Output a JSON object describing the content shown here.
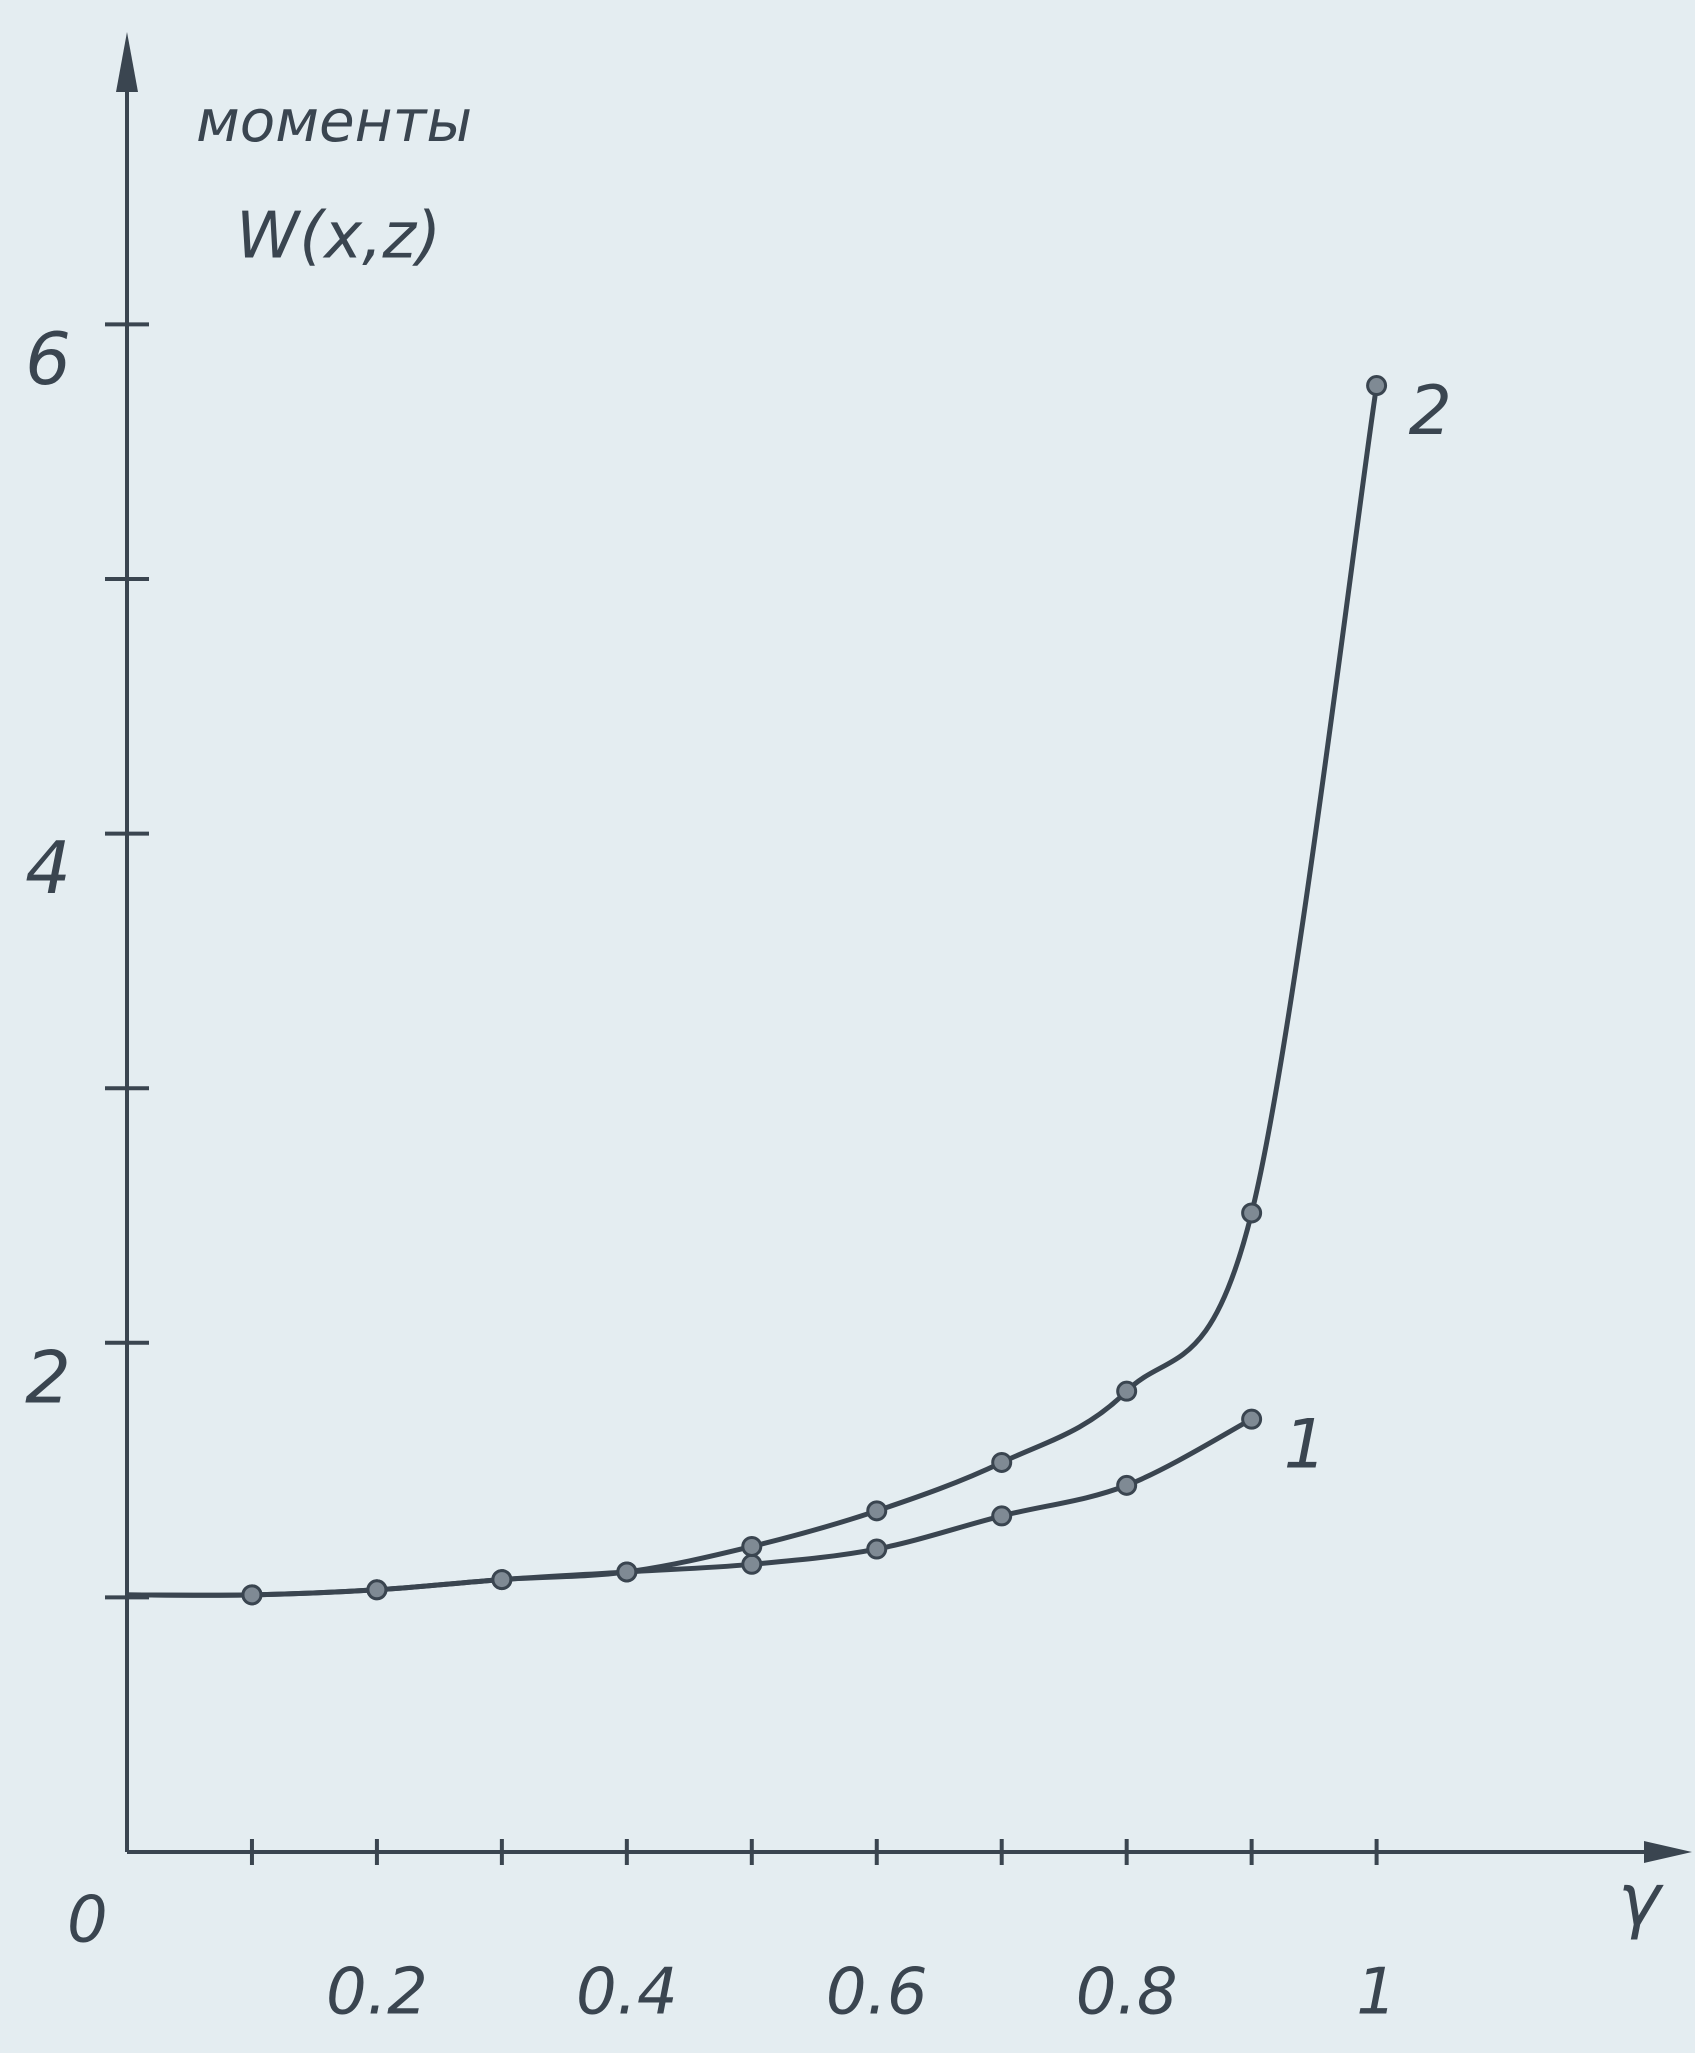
{
  "chart_data": {
    "type": "line",
    "y_label_lines": [
      "моменты",
      "W(x,z)"
    ],
    "x_label": "γ",
    "x": [
      0,
      0.1,
      0.2,
      0.3,
      0.4,
      0.5,
      0.6,
      0.7,
      0.8,
      0.9,
      1.0
    ],
    "series": [
      {
        "name": "1",
        "color": "#3a4550",
        "values": [
          1.01,
          1.01,
          1.03,
          1.07,
          1.1,
          1.13,
          1.19,
          1.32,
          1.44,
          1.7,
          null
        ]
      },
      {
        "name": "2",
        "color": "#3a4550",
        "values": [
          1.01,
          1.01,
          1.03,
          1.07,
          1.1,
          1.2,
          1.34,
          1.53,
          1.81,
          2.51,
          5.76
        ]
      }
    ],
    "xlim": [
      0,
      1.23
    ],
    "ylim": [
      0,
      7.07
    ],
    "xticks": [
      0,
      0.2,
      0.4,
      0.6,
      0.8,
      1
    ],
    "x_minor_ticks": [
      0.1,
      0.3,
      0.5,
      0.7,
      0.9
    ],
    "yticks": [
      2,
      4,
      6
    ],
    "y_minor_ticks": [
      1,
      3,
      5
    ],
    "axis_color": "#3a4550"
  }
}
